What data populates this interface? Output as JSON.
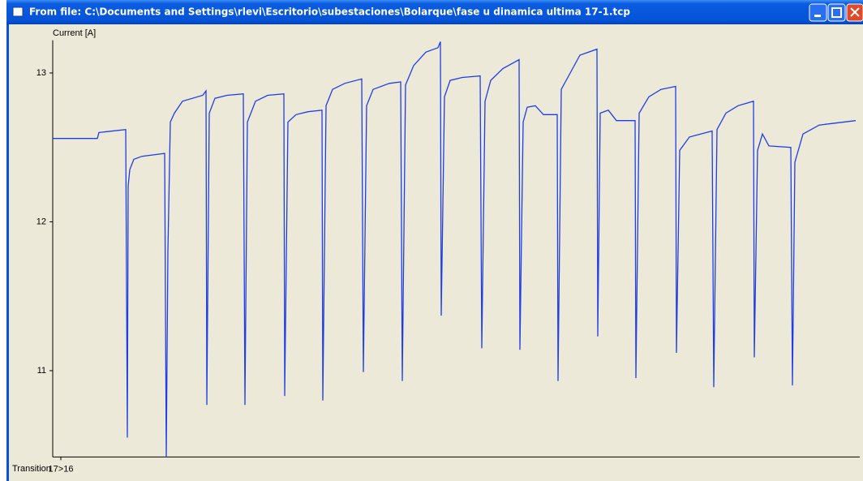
{
  "window": {
    "title": "From file: C:\\Documents and Settings\\rlevi\\Escritorio\\subestaciones\\Bolarque\\fase u dinamica ultima 17-1.tcp"
  },
  "chart_data": {
    "type": "line",
    "ylabel": "Current [A]",
    "xlabel": "Transition",
    "color": "#1f3de6",
    "xlim": [
      0,
      995
    ],
    "xticks": [
      {
        "value": 10,
        "label": "17>16"
      }
    ],
    "ylim": [
      10.42,
      13.22
    ],
    "yticks": [
      11,
      12,
      13
    ],
    "x": [
      0,
      55,
      57,
      90,
      92,
      93,
      95,
      100,
      110,
      138,
      140,
      142,
      145,
      150,
      160,
      185,
      189,
      190,
      193,
      200,
      215,
      235,
      237,
      240,
      250,
      265,
      285,
      286,
      290,
      300,
      315,
      332,
      333,
      337,
      345,
      360,
      381,
      383,
      387,
      395,
      415,
      429,
      431,
      435,
      445,
      460,
      475,
      478,
      479,
      483,
      490,
      505,
      527,
      529,
      533,
      540,
      555,
      575,
      576,
      580,
      585,
      595,
      605,
      622,
      623,
      627,
      635,
      650,
      671,
      672,
      675,
      685,
      695,
      718,
      719,
      723,
      735,
      750,
      768,
      769,
      773,
      785,
      813,
      815,
      819,
      830,
      845,
      864,
      865,
      869,
      875,
      883,
      910,
      912,
      915,
      925,
      945,
      990
    ],
    "values": [
      12.56,
      12.56,
      12.6,
      12.62,
      10.55,
      12.24,
      12.35,
      12.42,
      12.44,
      12.46,
      10.42,
      11.8,
      12.67,
      12.73,
      12.81,
      12.85,
      12.88,
      10.77,
      12.73,
      12.83,
      12.85,
      12.86,
      10.77,
      12.67,
      12.81,
      12.85,
      12.86,
      10.83,
      12.67,
      12.72,
      12.74,
      12.75,
      10.8,
      12.78,
      12.89,
      12.93,
      12.96,
      10.99,
      12.78,
      12.89,
      12.93,
      12.94,
      10.93,
      12.92,
      13.05,
      13.14,
      13.17,
      13.21,
      11.37,
      12.84,
      12.95,
      12.97,
      12.98,
      11.15,
      12.81,
      12.95,
      13.03,
      13.09,
      11.14,
      12.67,
      12.77,
      12.78,
      12.72,
      12.72,
      10.93,
      12.89,
      12.97,
      13.12,
      13.16,
      11.23,
      12.73,
      12.75,
      12.68,
      12.68,
      10.95,
      12.73,
      12.84,
      12.89,
      12.91,
      11.12,
      12.48,
      12.57,
      12.61,
      10.89,
      12.62,
      12.73,
      12.78,
      12.81,
      11.09,
      12.48,
      12.59,
      12.51,
      12.5,
      10.9,
      12.4,
      12.59,
      12.65,
      12.68
    ]
  }
}
